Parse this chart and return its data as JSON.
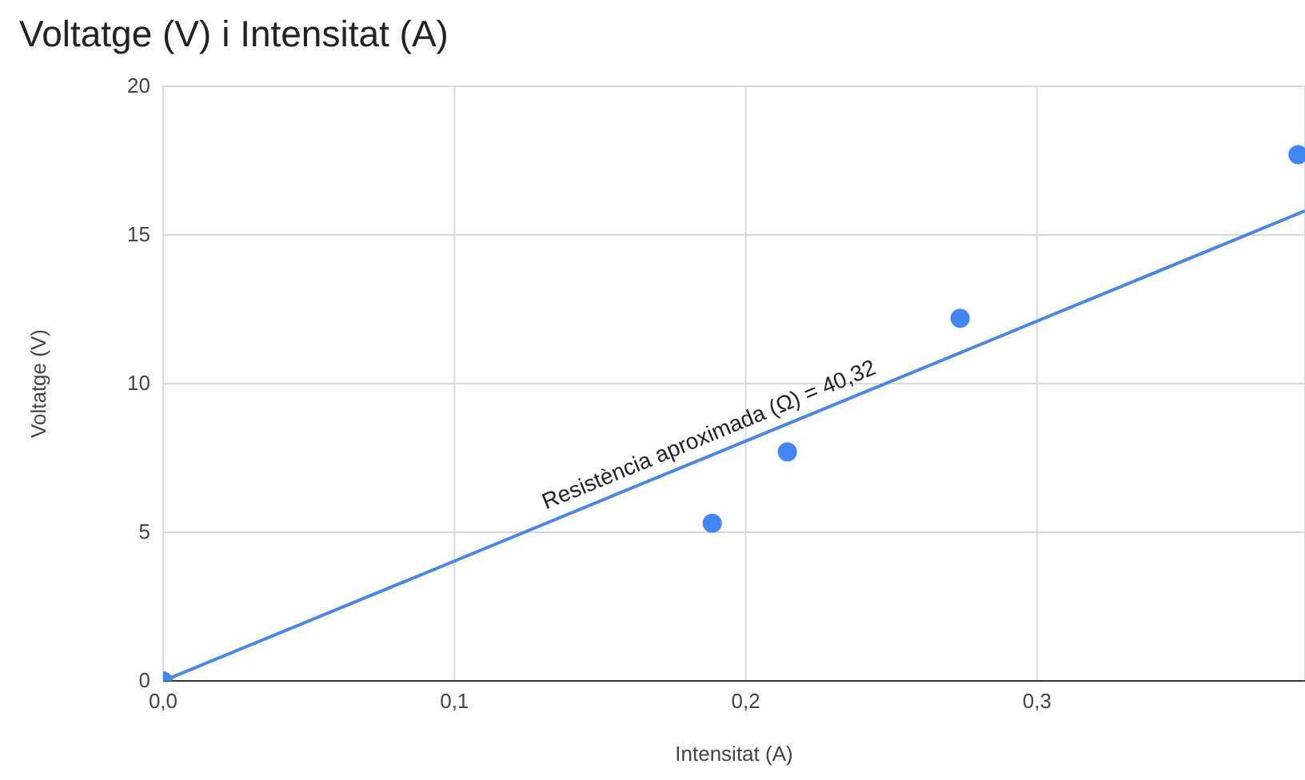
{
  "chart_data": {
    "type": "scatter",
    "title": "Voltatge (V) i Intensitat (A)",
    "xlabel": "Intensitat (A)",
    "ylabel": "Voltatge (V)",
    "series": [
      {
        "type": "scatter",
        "color": "#4285f4",
        "marker": "circle",
        "x": [
          0,
          0.1885,
          0.2143,
          0.2736,
          0.3896
        ],
        "values": [
          0,
          5.3,
          7.7,
          12.2,
          17.7
        ]
      },
      {
        "type": "line",
        "color": "#4a86e8",
        "marker": "none",
        "x": [
          0,
          0.392
        ],
        "values": [
          0,
          15.81
        ]
      }
    ],
    "annotations": [
      {
        "text": "Resistència aproximada (Ω) = 40,32",
        "x": 0.19,
        "y": 7.66
      }
    ],
    "xlim": [
      0,
      0.392
    ],
    "xticks": [
      {
        "value": 0,
        "label": "0,0"
      },
      {
        "value": 0.1,
        "label": "0,1"
      },
      {
        "value": 0.2,
        "label": "0,2"
      },
      {
        "value": 0.3,
        "label": "0,3"
      }
    ],
    "ylim": [
      0,
      20
    ],
    "yticks": [
      0,
      5,
      10,
      15,
      20
    ],
    "grid": true,
    "legend": false
  }
}
